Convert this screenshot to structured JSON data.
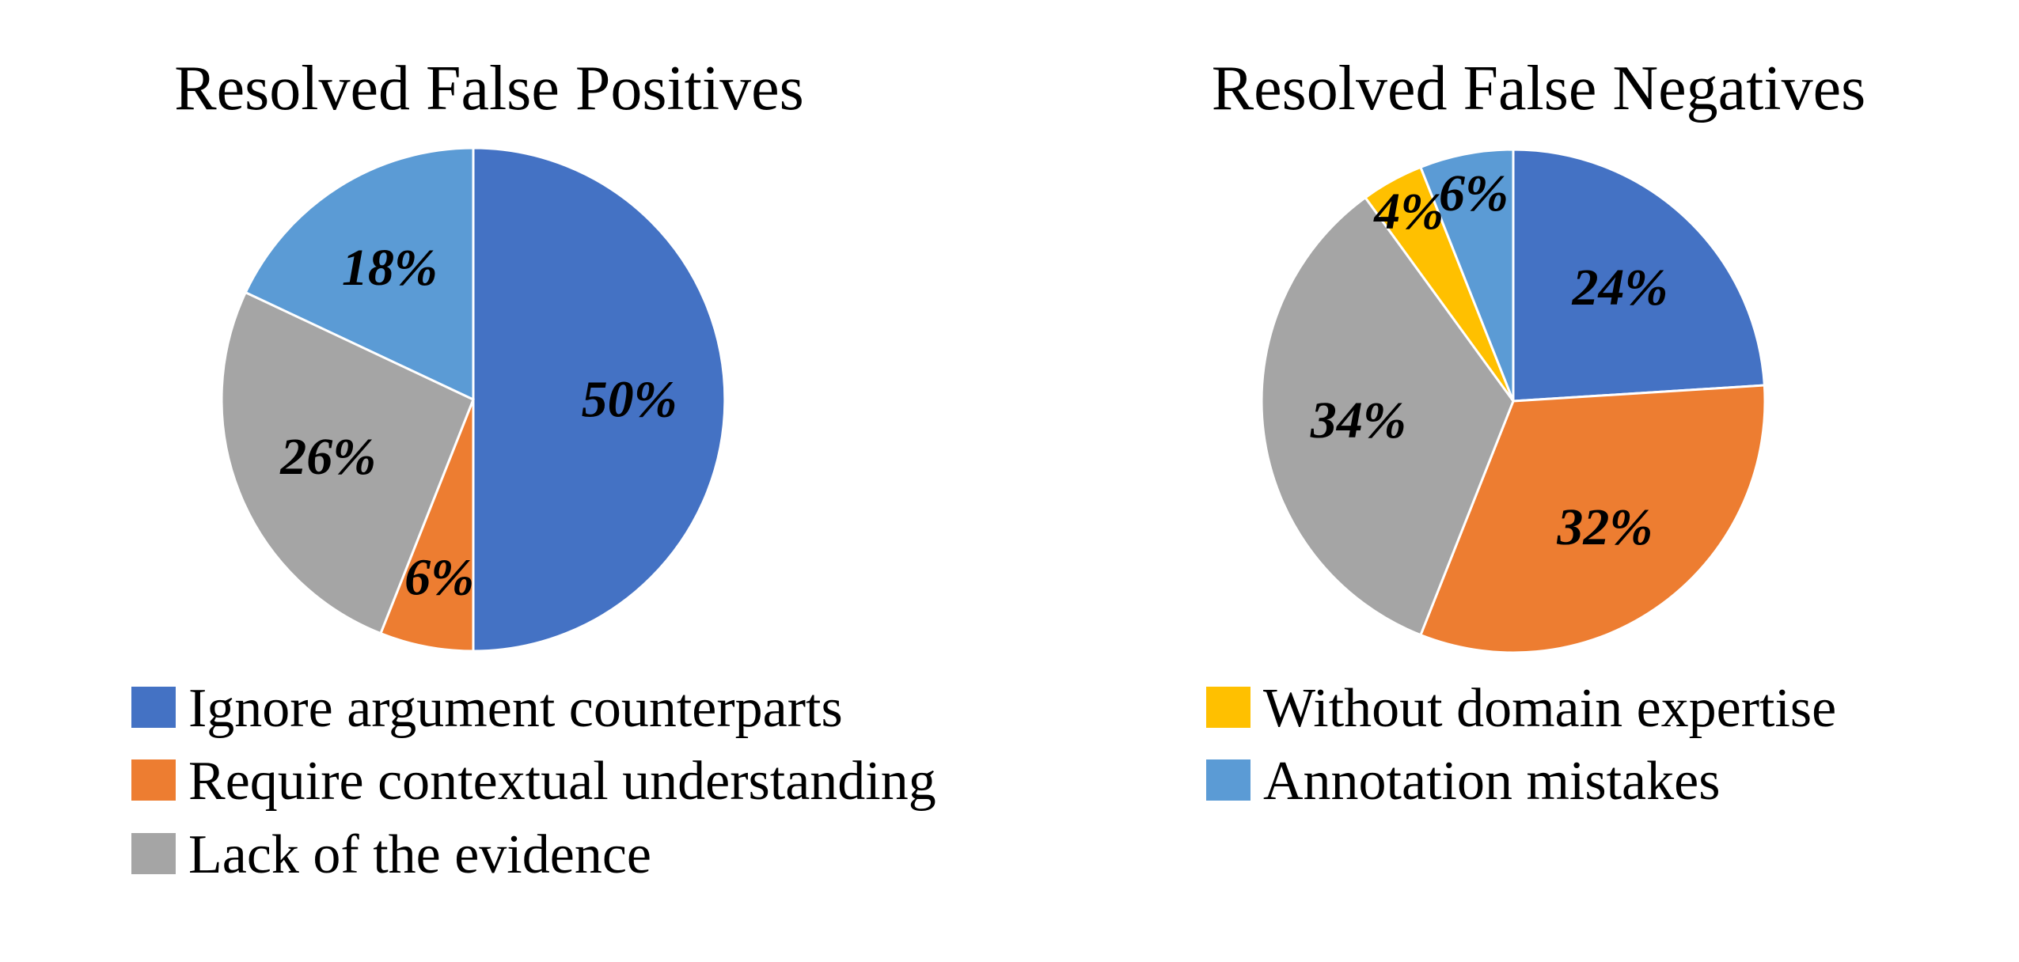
{
  "chart_data": [
    {
      "type": "pie",
      "title": "Resolved False Positives",
      "categories": [
        "Ignore argument counterparts",
        "Require contextual understanding",
        "Lack of the evidence",
        "Annotation mistakes"
      ],
      "values": [
        50,
        6,
        26,
        18
      ],
      "labels": [
        "50%",
        "6%",
        "26%",
        "18%"
      ],
      "colors": [
        "#4472C4",
        "#ED7D31",
        "#A5A5A5",
        "#5B9BD5"
      ],
      "start": "12 o'clock",
      "direction": "clockwise"
    },
    {
      "type": "pie",
      "title": "Resolved False Negatives",
      "categories": [
        "Ignore argument counterparts",
        "Require contextual understanding",
        "Lack of the evidence",
        "Without domain expertise",
        "Annotation mistakes"
      ],
      "values": [
        24,
        32,
        34,
        4,
        6
      ],
      "labels": [
        "24%",
        "32%",
        "34%",
        "4%",
        "6%"
      ],
      "colors": [
        "#4472C4",
        "#ED7D31",
        "#A5A5A5",
        "#FFC000",
        "#5B9BD5"
      ],
      "start": "12 o'clock",
      "direction": "clockwise"
    }
  ],
  "legend": [
    {
      "label": "Ignore argument counterparts",
      "color": "#4472C4"
    },
    {
      "label": "Require contextual understanding",
      "color": "#ED7D31"
    },
    {
      "label": "Lack of the evidence",
      "color": "#A5A5A5"
    },
    {
      "label": "Without domain expertise",
      "color": "#FFC000"
    },
    {
      "label": "Annotation mistakes",
      "color": "#5B9BD5"
    }
  ]
}
